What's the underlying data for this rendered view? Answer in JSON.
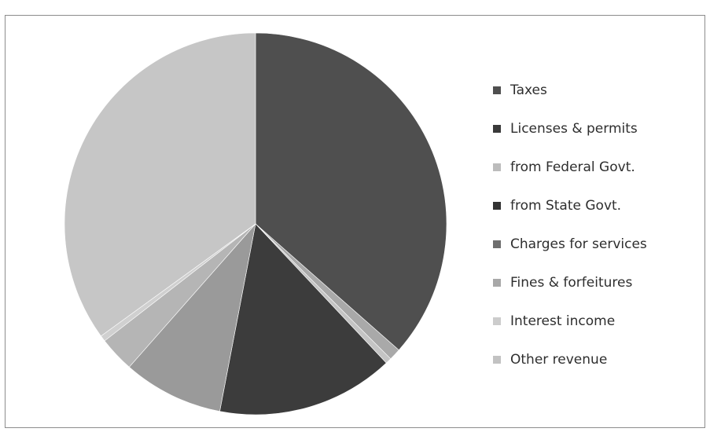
{
  "chart_data": {
    "type": "pie",
    "title": "",
    "legend_position": "right",
    "series": [
      {
        "name": "Taxes",
        "value": 36.5,
        "color": "#4f4f4f"
      },
      {
        "name": "Licenses & permits",
        "value": 1.0,
        "color": "#a9a9a9"
      },
      {
        "name": "from Federal Govt.",
        "value": 0.5,
        "color": "#c4c4c4"
      },
      {
        "name": "from State Govt.",
        "value": 15.0,
        "color": "#3c3c3c"
      },
      {
        "name": "Charges for services",
        "value": 8.5,
        "color": "#9a9a9a"
      },
      {
        "name": "Fines & forfeitures",
        "value": 3.0,
        "color": "#b5b5b5"
      },
      {
        "name": "Interest income",
        "value": 0.5,
        "color": "#d0d0d0"
      },
      {
        "name": "Other revenue",
        "value": 35.0,
        "color": "#c6c6c6"
      }
    ]
  },
  "legend": {
    "items": [
      {
        "label": "Taxes",
        "color": "#4f4f4f"
      },
      {
        "label": "Licenses & permits",
        "color": "#3a3a3a"
      },
      {
        "label": "from Federal Govt.",
        "color": "#bcbcbc"
      },
      {
        "label": "from State Govt.",
        "color": "#333333"
      },
      {
        "label": "Charges for services",
        "color": "#6e6e6e"
      },
      {
        "label": "Fines & forfeitures",
        "color": "#a8a8a8"
      },
      {
        "label": "Interest income",
        "color": "#cccccc"
      },
      {
        "label": "Other revenue",
        "color": "#c2c2c2"
      }
    ]
  }
}
